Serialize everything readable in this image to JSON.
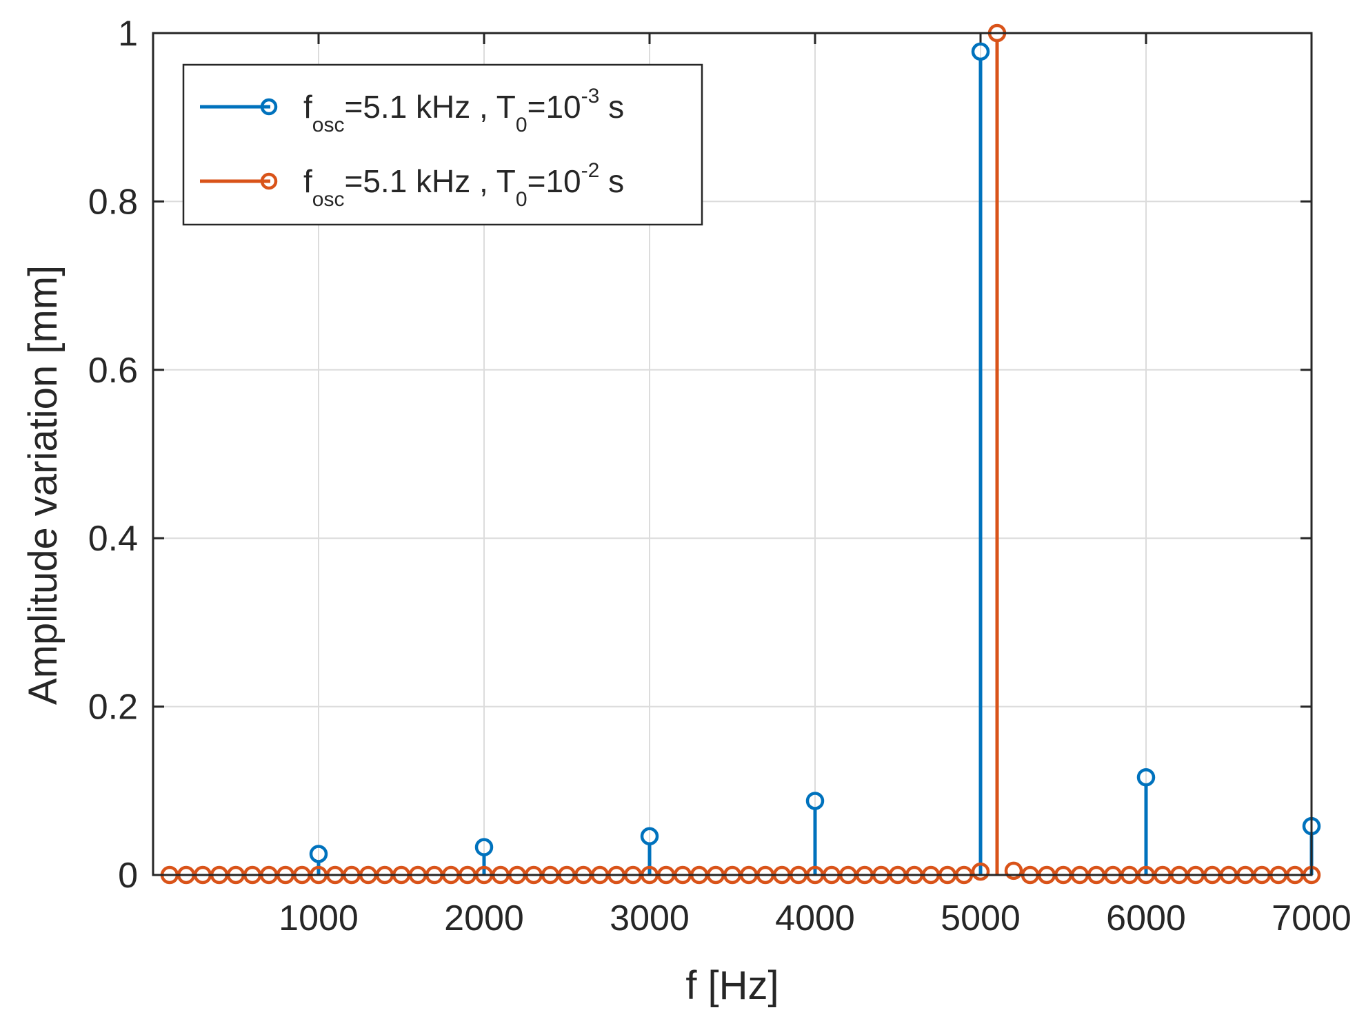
{
  "chart_data": {
    "type": "stem",
    "xlabel": "f [Hz]",
    "ylabel": "Amplitude variation [mm]",
    "xlim": [
      0,
      7000
    ],
    "ylim": [
      0,
      1
    ],
    "x_ticks": [
      1000,
      2000,
      3000,
      4000,
      5000,
      6000,
      7000
    ],
    "y_ticks": [
      0,
      0.2,
      0.4,
      0.6,
      0.8,
      1
    ],
    "y_tick_labels": [
      "0",
      "0.2",
      "0.4",
      "0.6",
      "0.8",
      "1"
    ],
    "grid": true,
    "legend_position": "top-left",
    "series": [
      {
        "name": "f_osc=5.1 kHz , T_0=10^-3 s",
        "legend": {
          "f": "f",
          "f_sub": "osc",
          "mid": "=5.1 kHz , T",
          "t_sub": "0",
          "eq": "=10",
          "exp": "-3",
          "unit": " s"
        },
        "color": "#0072BD",
        "x": [
          1000,
          2000,
          3000,
          4000,
          5000,
          6000,
          7000
        ],
        "y": [
          0.025,
          0.033,
          0.046,
          0.088,
          0.978,
          0.116,
          0.058
        ]
      },
      {
        "name": "f_osc=5.1 kHz , T_0=10^-2 s",
        "legend": {
          "f": "f",
          "f_sub": "osc",
          "mid": "=5.1 kHz , T",
          "t_sub": "0",
          "eq": "=10",
          "exp": "-2",
          "unit": " s"
        },
        "color": "#D95319",
        "x": [
          100,
          200,
          300,
          400,
          500,
          600,
          700,
          800,
          900,
          1000,
          1100,
          1200,
          1300,
          1400,
          1500,
          1600,
          1700,
          1800,
          1900,
          2000,
          2100,
          2200,
          2300,
          2400,
          2500,
          2600,
          2700,
          2800,
          2900,
          3000,
          3100,
          3200,
          3300,
          3400,
          3500,
          3600,
          3700,
          3800,
          3900,
          4000,
          4100,
          4200,
          4300,
          4400,
          4500,
          4600,
          4700,
          4800,
          4900,
          5000,
          5100,
          5200,
          5300,
          5400,
          5500,
          5600,
          5700,
          5800,
          5900,
          6000,
          6100,
          6200,
          6300,
          6400,
          6500,
          6600,
          6700,
          6800,
          6900,
          7000
        ],
        "y": [
          0,
          0,
          0,
          0,
          0,
          0,
          0,
          0,
          0,
          0,
          0,
          0,
          0,
          0,
          0,
          0,
          0,
          0,
          0,
          0,
          0,
          0,
          0,
          0,
          0,
          0,
          0,
          0,
          0,
          0,
          0,
          0,
          0,
          0,
          0,
          0,
          0,
          0,
          0,
          0,
          0,
          0,
          0,
          0,
          0,
          0,
          0,
          0,
          0,
          0.004,
          1.0,
          0.005,
          0,
          0,
          0,
          0,
          0,
          0,
          0,
          0,
          0,
          0,
          0,
          0,
          0,
          0,
          0,
          0,
          0,
          0
        ]
      }
    ]
  }
}
